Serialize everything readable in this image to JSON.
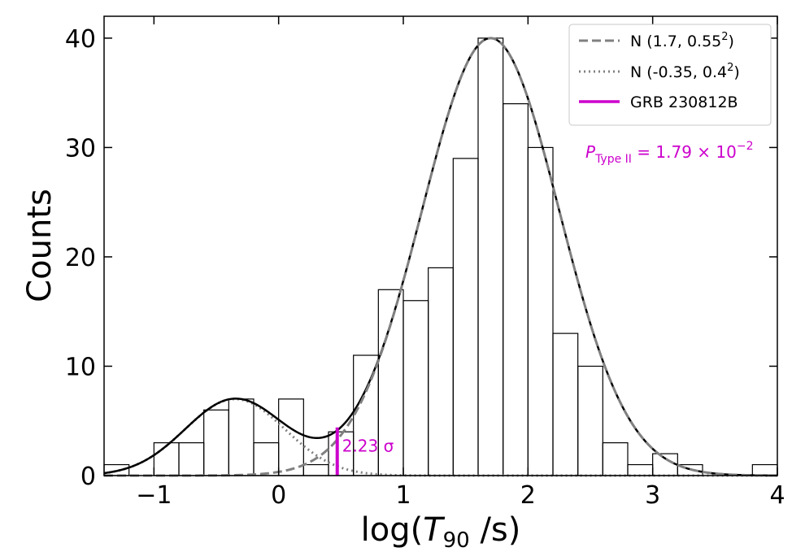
{
  "chart_data": {
    "type": "histogram",
    "xlabel_prefix": "log(",
    "xlabel_var": "T",
    "xlabel_sub": "90",
    "xlabel_suffix": " /s)",
    "ylabel": "Counts",
    "xlim": [
      -1.4,
      4.0
    ],
    "ylim": [
      0,
      42
    ],
    "x_ticks": [
      -1,
      0,
      1,
      2,
      3,
      4
    ],
    "x_tick_labels": [
      "−1",
      "0",
      "1",
      "2",
      "3",
      "4"
    ],
    "y_ticks": [
      0,
      10,
      20,
      30,
      40
    ],
    "y_tick_labels": [
      "0",
      "10",
      "20",
      "30",
      "40"
    ],
    "grid": false,
    "legend_position": "top-right",
    "histogram": {
      "bin_edges": [
        -1.4,
        -1.2,
        -1.0,
        -0.8,
        -0.6,
        -0.4,
        -0.2,
        0.0,
        0.2,
        0.4,
        0.6,
        0.8,
        1.0,
        1.2,
        1.4,
        1.6,
        1.8,
        2.0,
        2.2,
        2.4,
        2.6,
        2.8,
        3.0,
        3.2,
        3.4,
        3.6,
        3.8,
        4.0
      ],
      "counts": [
        1,
        0,
        3,
        3,
        6,
        7,
        3,
        7,
        1,
        4,
        11,
        17,
        16,
        19,
        29,
        40,
        34,
        30,
        13,
        10,
        3,
        1,
        2,
        1,
        0,
        0,
        1
      ],
      "color": "#000000"
    },
    "components": [
      {
        "name": "N (1.7, 0.55",
        "name_sup": "2",
        "name_end": ")",
        "mu": 1.7,
        "sigma": 0.55,
        "peak": 40,
        "style": "dashed",
        "color": "#808080"
      },
      {
        "name": "N (-0.35, 0.4",
        "name_sup": "2",
        "name_end": ")",
        "mu": -0.35,
        "sigma": 0.4,
        "peak": 7,
        "style": "dotted",
        "color": "#808080"
      }
    ],
    "total_curve_color": "#000000",
    "marker": {
      "name": "GRB 230812B",
      "x": 0.47,
      "y_top": 4.4,
      "color": "#cc00cc",
      "label": "2.23 σ"
    },
    "probability_annotation": {
      "symbol": "P",
      "sub": "Type II",
      "value": " = 1.79 × 10",
      "sup": "−2",
      "color": "#cc00cc"
    }
  }
}
